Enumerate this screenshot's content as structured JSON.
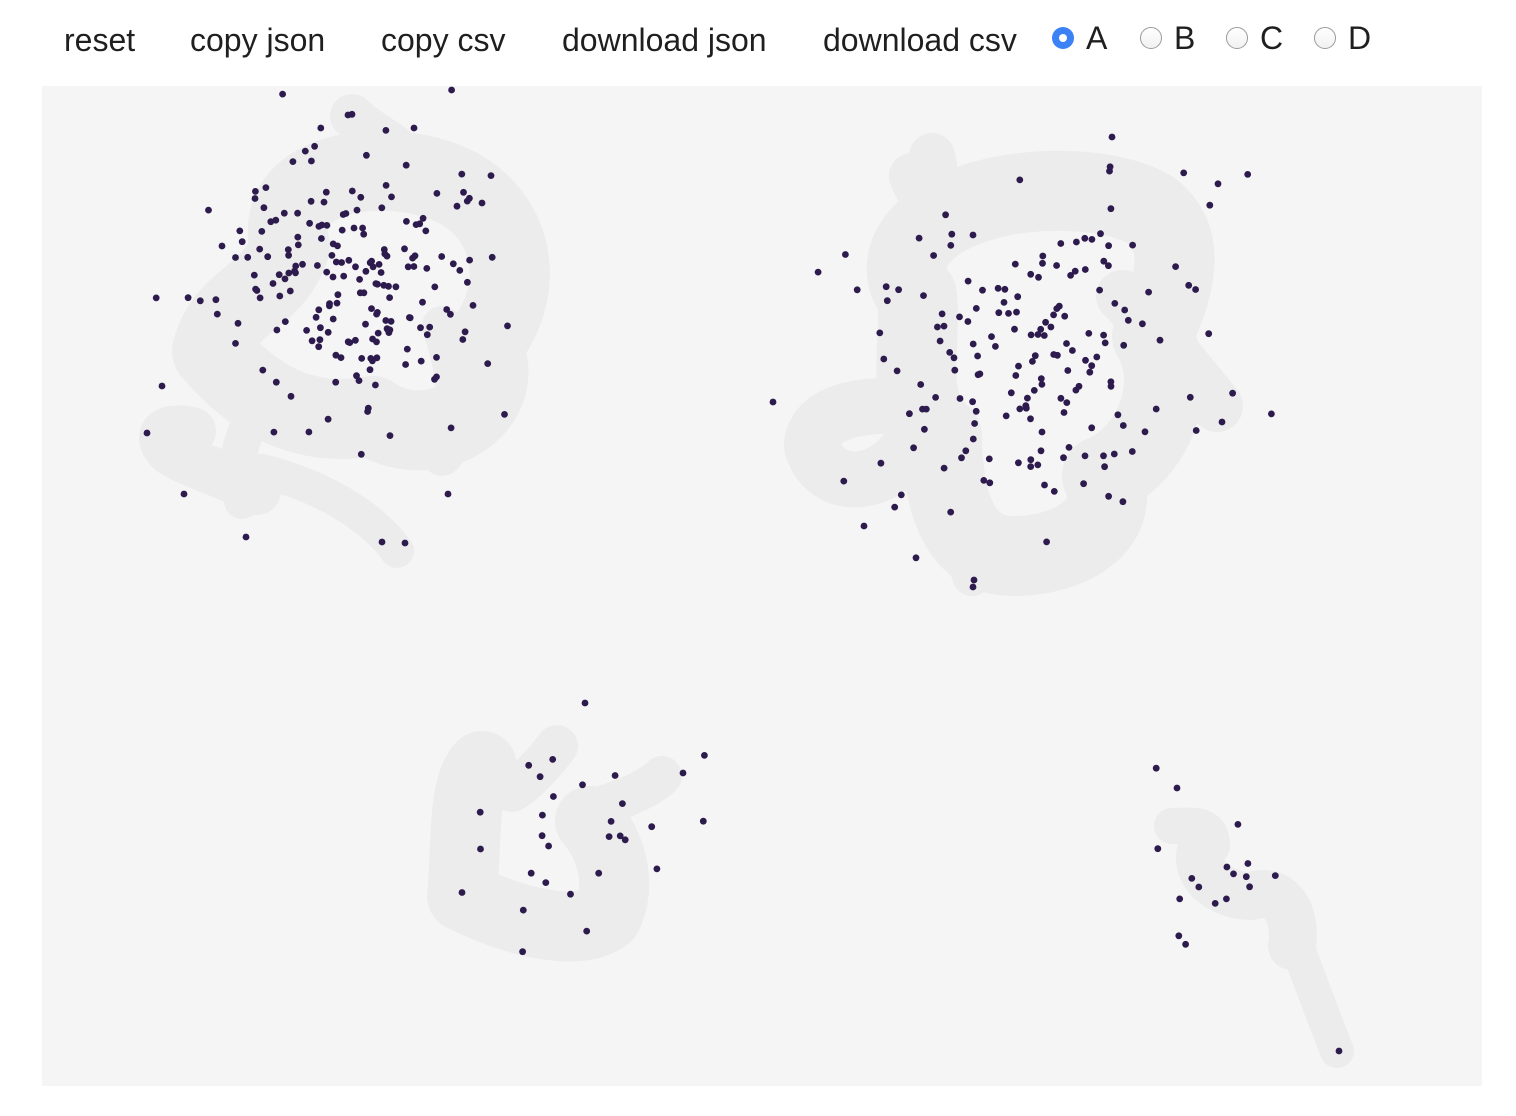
{
  "toolbar": {
    "reset_label": "reset",
    "copy_json_label": "copy json",
    "copy_csv_label": "copy csv",
    "download_json_label": "download json",
    "download_csv_label": "download csv"
  },
  "radio_options": [
    {
      "label": "A",
      "checked": true
    },
    {
      "label": "B",
      "checked": false
    },
    {
      "label": "C",
      "checked": false
    },
    {
      "label": "D",
      "checked": false
    }
  ],
  "colors": {
    "canvas_background": "#f5f5f5",
    "brush_stroke": "#ececec",
    "point": "#2d1b4e",
    "radio_accent": "#3b82f6"
  }
}
